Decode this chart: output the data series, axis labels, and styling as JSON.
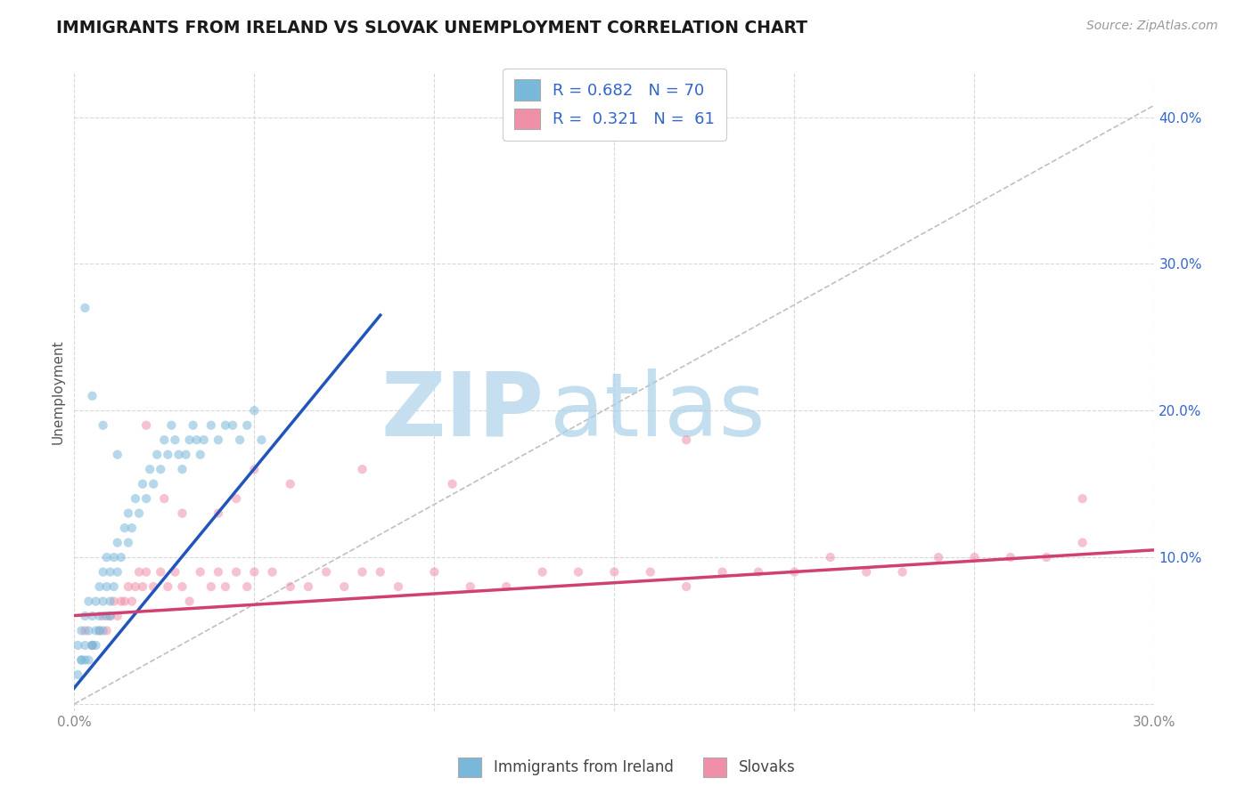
{
  "title": "IMMIGRANTS FROM IRELAND VS SLOVAK UNEMPLOYMENT CORRELATION CHART",
  "source_text": "Source: ZipAtlas.com",
  "ylabel": "Unemployment",
  "xlim": [
    0.0,
    0.3
  ],
  "ylim": [
    -0.005,
    0.43
  ],
  "x_ticks": [
    0.0,
    0.05,
    0.1,
    0.15,
    0.2,
    0.25,
    0.3
  ],
  "x_tick_labels": [
    "0.0%",
    "",
    "",
    "",
    "",
    "",
    "30.0%"
  ],
  "y_ticks": [
    0.0,
    0.1,
    0.2,
    0.3,
    0.4
  ],
  "y_tick_labels": [
    "",
    "10.0%",
    "20.0%",
    "30.0%",
    "40.0%"
  ],
  "legend_items": [
    {
      "label": "Immigrants from Ireland",
      "color": "#a8c8e8",
      "R": "0.682",
      "N": "70"
    },
    {
      "label": "Slovaks",
      "color": "#f4a0b8",
      "R": "0.321",
      "N": "61"
    }
  ],
  "blue_scatter_x": [
    0.001,
    0.002,
    0.002,
    0.003,
    0.003,
    0.004,
    0.004,
    0.005,
    0.005,
    0.006,
    0.006,
    0.007,
    0.007,
    0.008,
    0.008,
    0.009,
    0.009,
    0.01,
    0.01,
    0.011,
    0.011,
    0.012,
    0.012,
    0.013,
    0.014,
    0.015,
    0.015,
    0.016,
    0.017,
    0.018,
    0.019,
    0.02,
    0.021,
    0.022,
    0.023,
    0.024,
    0.025,
    0.026,
    0.027,
    0.028,
    0.029,
    0.03,
    0.031,
    0.032,
    0.033,
    0.034,
    0.035,
    0.036,
    0.038,
    0.04,
    0.042,
    0.044,
    0.046,
    0.048,
    0.05,
    0.052,
    0.001,
    0.002,
    0.003,
    0.004,
    0.005,
    0.006,
    0.007,
    0.008,
    0.009,
    0.01,
    0.003,
    0.005,
    0.008,
    0.012
  ],
  "blue_scatter_y": [
    0.04,
    0.05,
    0.03,
    0.06,
    0.04,
    0.05,
    0.07,
    0.06,
    0.04,
    0.07,
    0.05,
    0.08,
    0.06,
    0.09,
    0.07,
    0.08,
    0.1,
    0.09,
    0.07,
    0.1,
    0.08,
    0.09,
    0.11,
    0.1,
    0.12,
    0.11,
    0.13,
    0.12,
    0.14,
    0.13,
    0.15,
    0.14,
    0.16,
    0.15,
    0.17,
    0.16,
    0.18,
    0.17,
    0.19,
    0.18,
    0.17,
    0.16,
    0.17,
    0.18,
    0.19,
    0.18,
    0.17,
    0.18,
    0.19,
    0.18,
    0.19,
    0.19,
    0.18,
    0.19,
    0.2,
    0.18,
    0.02,
    0.03,
    0.03,
    0.03,
    0.04,
    0.04,
    0.05,
    0.05,
    0.06,
    0.06,
    0.27,
    0.21,
    0.19,
    0.17
  ],
  "pink_scatter_x": [
    0.003,
    0.005,
    0.007,
    0.008,
    0.009,
    0.01,
    0.011,
    0.012,
    0.013,
    0.014,
    0.015,
    0.016,
    0.017,
    0.018,
    0.019,
    0.02,
    0.022,
    0.024,
    0.026,
    0.028,
    0.03,
    0.032,
    0.035,
    0.038,
    0.04,
    0.042,
    0.045,
    0.048,
    0.05,
    0.055,
    0.06,
    0.065,
    0.07,
    0.075,
    0.08,
    0.085,
    0.09,
    0.1,
    0.11,
    0.12,
    0.13,
    0.14,
    0.15,
    0.16,
    0.17,
    0.18,
    0.19,
    0.2,
    0.21,
    0.22,
    0.23,
    0.24,
    0.25,
    0.26,
    0.27,
    0.28,
    0.02,
    0.025,
    0.03,
    0.04,
    0.05
  ],
  "pink_scatter_y": [
    0.05,
    0.04,
    0.05,
    0.06,
    0.05,
    0.06,
    0.07,
    0.06,
    0.07,
    0.07,
    0.08,
    0.07,
    0.08,
    0.09,
    0.08,
    0.09,
    0.08,
    0.09,
    0.08,
    0.09,
    0.08,
    0.07,
    0.09,
    0.08,
    0.09,
    0.08,
    0.09,
    0.08,
    0.09,
    0.09,
    0.08,
    0.08,
    0.09,
    0.08,
    0.09,
    0.09,
    0.08,
    0.09,
    0.08,
    0.08,
    0.09,
    0.09,
    0.09,
    0.09,
    0.08,
    0.09,
    0.09,
    0.09,
    0.1,
    0.09,
    0.09,
    0.1,
    0.1,
    0.1,
    0.1,
    0.11,
    0.19,
    0.14,
    0.13,
    0.13,
    0.16
  ],
  "pink_scatter_outliers_x": [
    0.08,
    0.17,
    0.28,
    0.045,
    0.06,
    0.105
  ],
  "pink_scatter_outliers_y": [
    0.16,
    0.18,
    0.14,
    0.14,
    0.15,
    0.15
  ],
  "blue_line_x": [
    -0.002,
    0.085
  ],
  "blue_line_y": [
    0.005,
    0.265
  ],
  "pink_line_x": [
    -0.002,
    0.3
  ],
  "pink_line_y": [
    0.06,
    0.105
  ],
  "diagonal_line_x": [
    0.0,
    0.305
  ],
  "diagonal_line_y": [
    0.0,
    0.415
  ],
  "title_color": "#1a1a1a",
  "title_fontsize": 13.5,
  "axis_label_color": "#555555",
  "tick_label_color": "#888888",
  "blue_color": "#7ab8d9",
  "pink_color": "#f090a8",
  "blue_line_color": "#2255bb",
  "pink_line_color": "#d04070",
  "diagonal_color": "#c0c0c0",
  "legend_R_color": "#3366cc",
  "background_color": "#ffffff",
  "grid_color": "#d8d8d8",
  "watermark_zip": "ZIP",
  "watermark_atlas": "atlas",
  "source_fontsize": 10,
  "scatter_size": 55,
  "scatter_alpha": 0.55
}
